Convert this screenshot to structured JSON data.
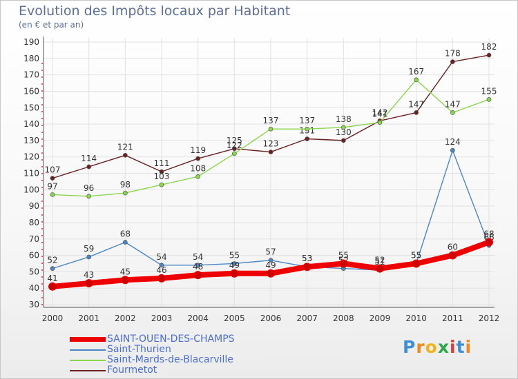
{
  "title": "Evolution des Impôts locaux par Habitant",
  "subtitle": "(en € et par an)",
  "logo_text": "Proxiti",
  "chart_data": {
    "type": "line",
    "title": "Evolution des Impôts locaux par Habitant",
    "subtitle": "(en € et par an)",
    "x": [
      "2000",
      "2001",
      "2002",
      "2003",
      "2004",
      "2005",
      "2006",
      "2007",
      "2008",
      "2009",
      "2010",
      "2011",
      "2012"
    ],
    "ylim": [
      30,
      190
    ],
    "yticks": [
      30,
      40,
      50,
      60,
      70,
      80,
      90,
      100,
      110,
      120,
      130,
      140,
      150,
      160,
      170,
      180,
      190
    ],
    "grid": true,
    "series": [
      {
        "name": "Fourmetot",
        "color": "#6b1f1f",
        "values": [
          107,
          114,
          121,
          111,
          119,
          125,
          123,
          131,
          130,
          142,
          147,
          178,
          182
        ]
      },
      {
        "name": "Saint-Mards-de-Blacarville",
        "color": "#88d84a",
        "values": [
          97,
          96,
          98,
          103,
          108,
          122,
          137,
          137,
          138,
          141,
          167,
          147,
          155
        ]
      },
      {
        "name": "Saint-Thurien",
        "color": "#4a86c6",
        "values": [
          52,
          59,
          68,
          54,
          54,
          55,
          57,
          53,
          52,
          51,
          55,
          124,
          66
        ]
      },
      {
        "name": "SAINT-OUEN-DES-CHAMPS",
        "color": "#ee0000",
        "values": [
          41,
          43,
          45,
          46,
          48,
          49,
          49,
          53,
          55,
          52,
          55,
          60,
          68
        ]
      }
    ],
    "legend": [
      "SAINT-OUEN-DES-CHAMPS",
      "Saint-Thurien",
      "Saint-Mards-de-Blacarville",
      "Fourmetot"
    ]
  }
}
